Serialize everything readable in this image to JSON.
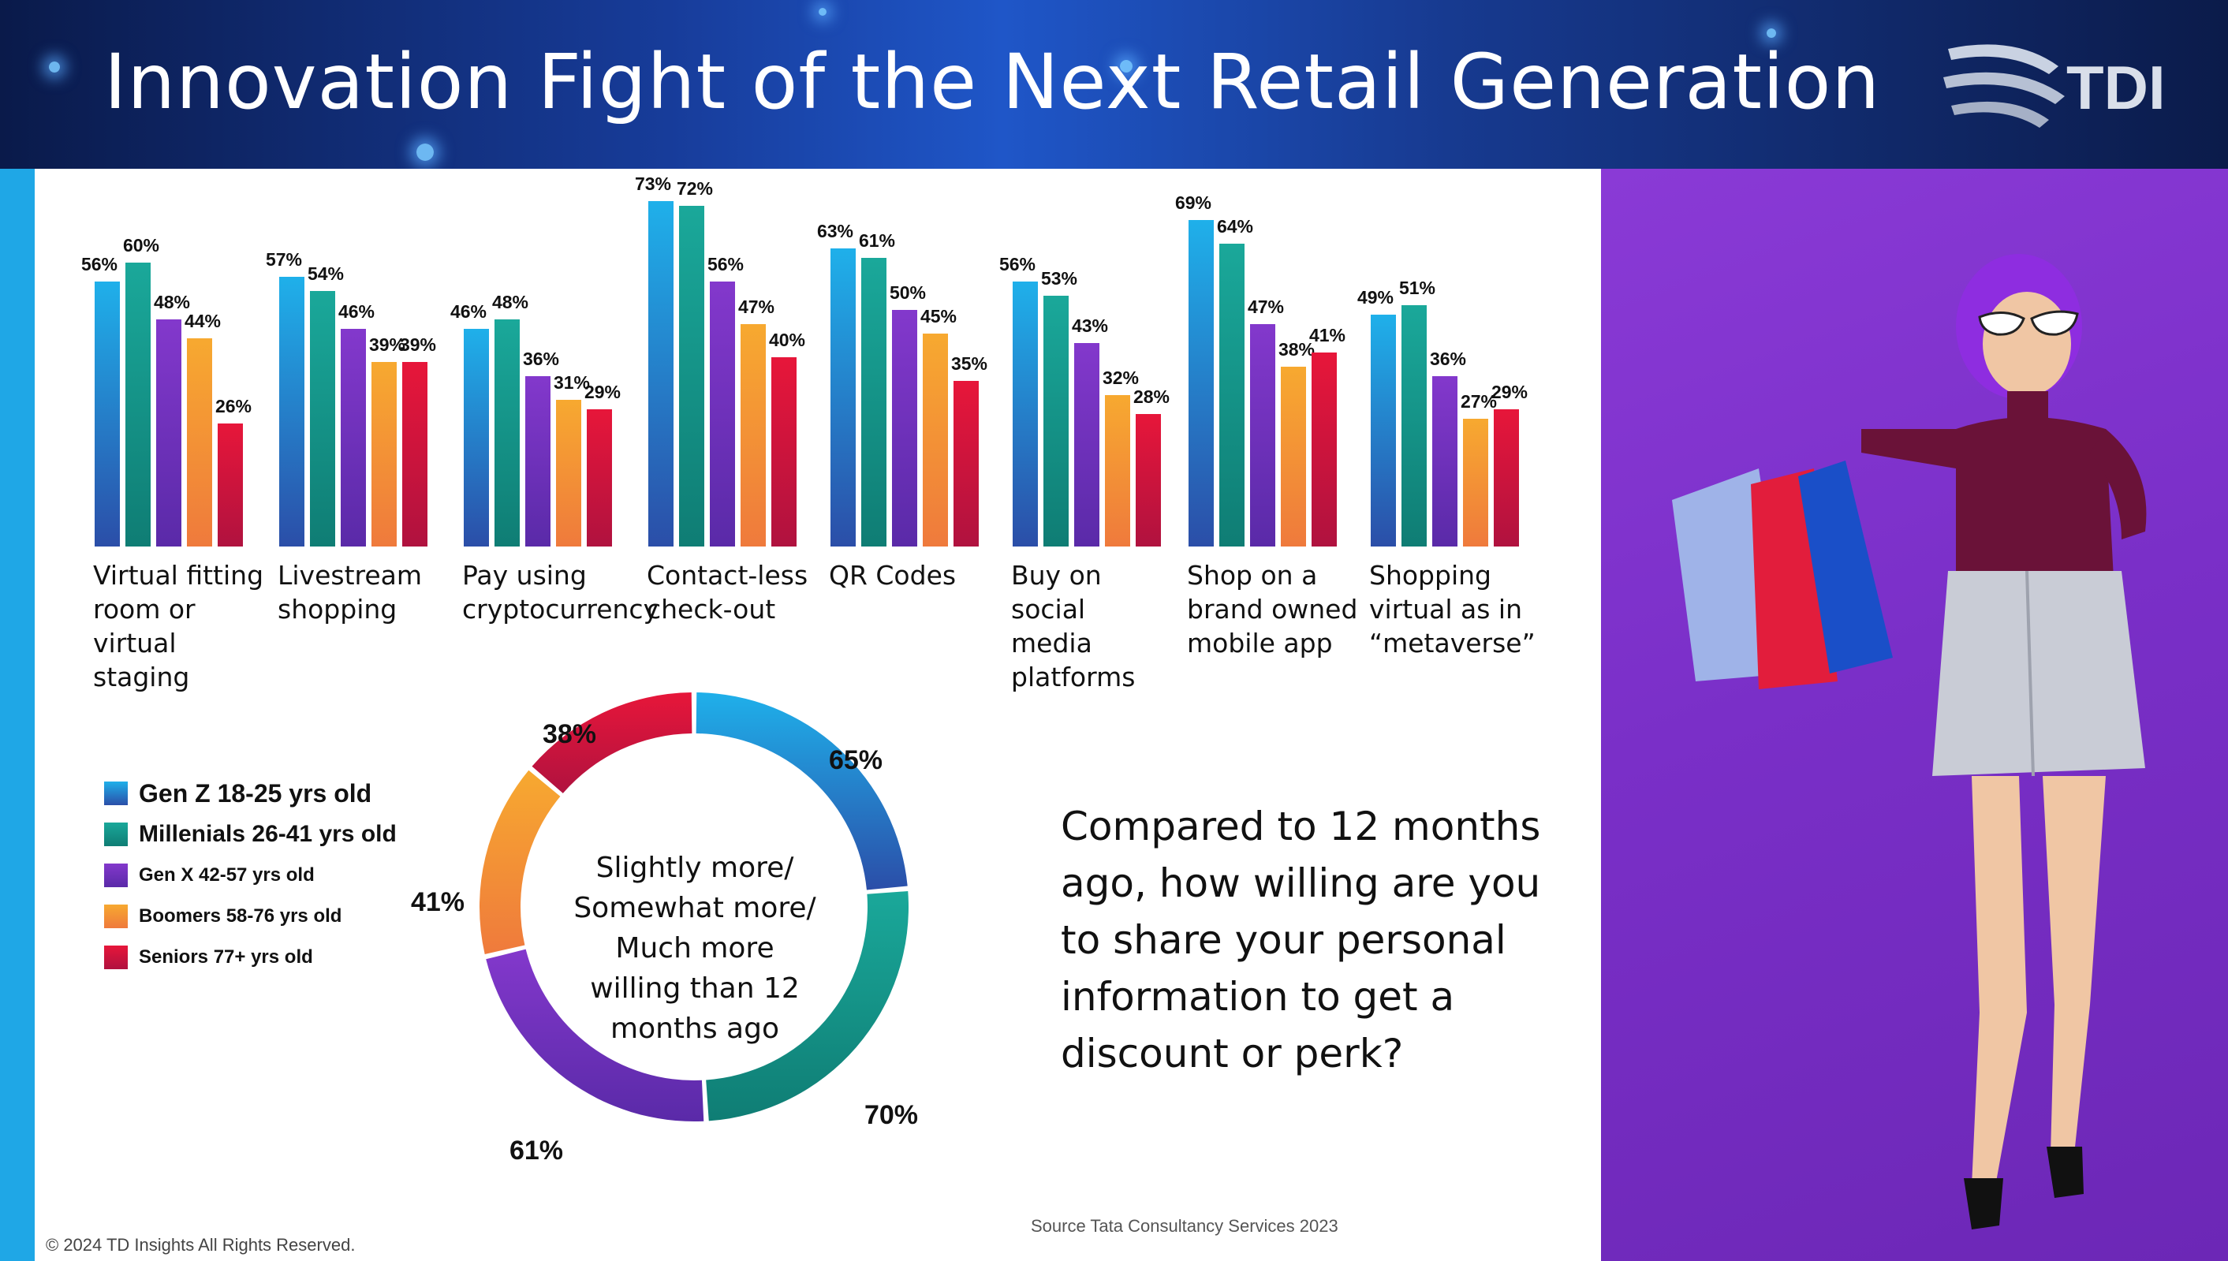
{
  "header": {
    "title": "Innovation Fight of the Next Retail Generation",
    "logo_text": "TDI"
  },
  "colors": {
    "accent_strip": "#1fa7e6",
    "photo_background": "#7a2fc8"
  },
  "chart_data": [
    {
      "type": "bar",
      "categories": [
        "Virtual fitting\nroom or\nvirtual\nstaging",
        "Livestream\nshopping",
        "Pay using\ncryptocurrency",
        "Contact-less\ncheck-out",
        "QR Codes",
        "Buy on\nsocial\nmedia\nplatforms",
        "Shop on a\nbrand owned\nmobile app",
        "Shopping\nvirtual as in\n“metaverse”"
      ],
      "series": [
        {
          "name": "Gen Z 18-25 yrs old",
          "values": [
            56,
            57,
            46,
            73,
            63,
            56,
            69,
            49
          ],
          "color_top": "#1fb0ea",
          "color_bottom": "#2b4ea8"
        },
        {
          "name": "Millenials 26-41 yrs old",
          "values": [
            60,
            54,
            48,
            72,
            61,
            53,
            64,
            51
          ],
          "color_top": "#1aa89a",
          "color_bottom": "#0f7d74"
        },
        {
          "name": "Gen X 42-57 yrs old",
          "values": [
            48,
            46,
            36,
            56,
            50,
            43,
            47,
            36
          ],
          "color_top": "#8338cc",
          "color_bottom": "#5a2aa8"
        },
        {
          "name": "Boomers 58-76 yrs old",
          "values": [
            44,
            39,
            31,
            47,
            45,
            32,
            38,
            27
          ],
          "color_top": "#f7a930",
          "color_bottom": "#ef7a3c"
        },
        {
          "name": "Seniors 77+ yrs old",
          "values": [
            26,
            39,
            29,
            40,
            35,
            28,
            41,
            29
          ],
          "color_top": "#e7163a",
          "color_bottom": "#b0123f"
        }
      ],
      "ylim": [
        0,
        80
      ],
      "data_label_suffix": "%",
      "legend": "bottom-left"
    },
    {
      "type": "pie",
      "style": "donut",
      "center_text": "Slightly more/\nSomewhat more/\nMuch more\nwilling than 12\nmonths ago",
      "slices": [
        {
          "series": "Gen Z 18-25 yrs old",
          "value": 65,
          "label": "65%"
        },
        {
          "series": "Millenials 26-41 yrs old",
          "value": 70,
          "label": "70%"
        },
        {
          "series": "Gen X 42-57 yrs old",
          "value": 61,
          "label": "61%"
        },
        {
          "series": "Boomers 58-76 yrs old",
          "value": 41,
          "label": "41%"
        },
        {
          "series": "Seniors 77+ yrs old",
          "value": 38,
          "label": "38%"
        }
      ]
    }
  ],
  "question": "Compared to 12 months ago, how willing are you to share your personal information to get a discount or perk?",
  "source": "Source Tata Consultancy Services 2023",
  "copyright": "© 2024 TD Insights All Rights Reserved."
}
